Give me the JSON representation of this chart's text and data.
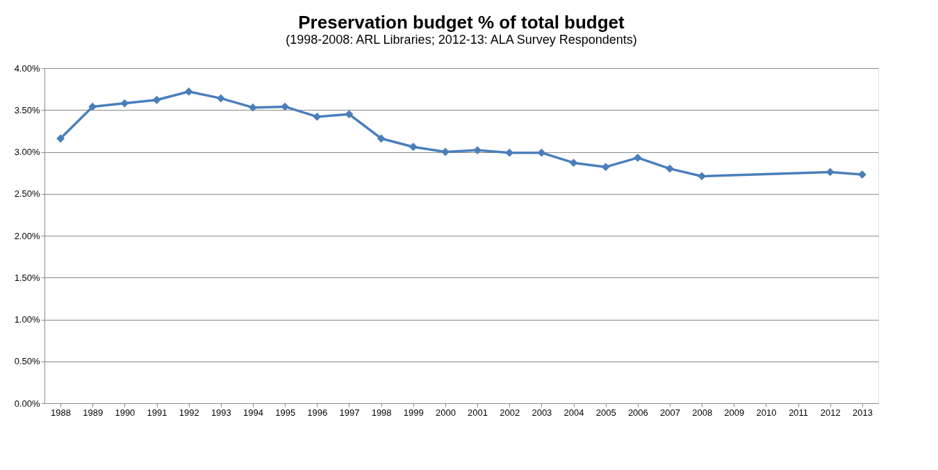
{
  "chart_data": {
    "type": "line",
    "title": "Preservation budget % of total budget",
    "subtitle": "(1998-2008: ARL Libraries; 2012-13: ALA Survey Respondents)",
    "categories": [
      "1988",
      "1989",
      "1990",
      "1991",
      "1992",
      "1993",
      "1994",
      "1995",
      "1996",
      "1997",
      "1998",
      "1999",
      "2000",
      "2001",
      "2002",
      "2003",
      "2004",
      "2005",
      "2006",
      "2007",
      "2008",
      "2009",
      "2010",
      "2011",
      "2012",
      "2013"
    ],
    "series": [
      {
        "color": "#4a7ebb",
        "values": [
          3.16,
          3.54,
          3.58,
          3.62,
          3.72,
          3.64,
          3.53,
          3.54,
          3.42,
          3.45,
          3.16,
          3.06,
          3.0,
          3.02,
          2.99,
          2.99,
          2.87,
          2.82,
          2.93,
          2.8,
          2.71,
          null,
          null,
          null,
          2.76,
          2.73
        ]
      }
    ],
    "ylim": [
      0,
      4
    ],
    "yticks": [
      {
        "value": 0,
        "label": "0.00%"
      },
      {
        "value": 0.5,
        "label": "0.50%"
      },
      {
        "value": 1,
        "label": "1.00%"
      },
      {
        "value": 1.5,
        "label": "1.50%"
      },
      {
        "value": 2,
        "label": "2.00%"
      },
      {
        "value": 2.5,
        "label": "2.50%"
      },
      {
        "value": 3,
        "label": "3.00%"
      },
      {
        "value": 3.5,
        "label": "3.50%"
      },
      {
        "value": 4,
        "label": "4.00%"
      }
    ],
    "grid": "y",
    "marker": "diamond",
    "line_style": "solid"
  }
}
